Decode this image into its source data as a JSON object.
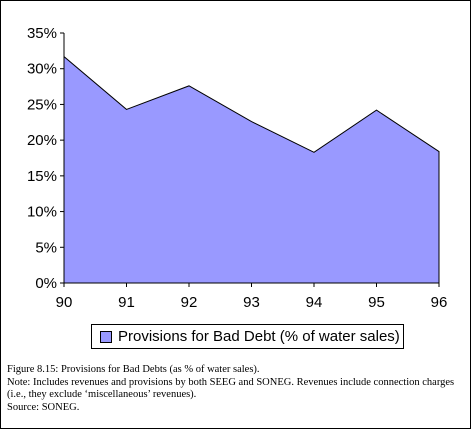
{
  "chart_data": {
    "type": "area",
    "categories": [
      "90",
      "91",
      "92",
      "93",
      "94",
      "95",
      "96"
    ],
    "series": [
      {
        "name": "Provisions for Bad Debt (% of water sales)",
        "values": [
          31.7,
          24.3,
          27.6,
          22.6,
          18.3,
          24.2,
          18.4
        ]
      }
    ],
    "yticks": [
      "0%",
      "5%",
      "10%",
      "15%",
      "20%",
      "25%",
      "30%",
      "35%"
    ],
    "ylim": [
      0,
      35
    ],
    "grid": false,
    "legend_position": "bottom",
    "colors": {
      "fill": "#9999ff",
      "outline": "#000000"
    }
  },
  "caption": {
    "title": "Figure 8.15: Provisions for Bad Debts (as % of water sales).",
    "note": "Note:  Includes revenues and provisions by both SEEG and SONEG.  Revenues include connection charges (i.e., they exclude ‘miscellaneous’ revenues).",
    "source": "Source: SONEG."
  }
}
